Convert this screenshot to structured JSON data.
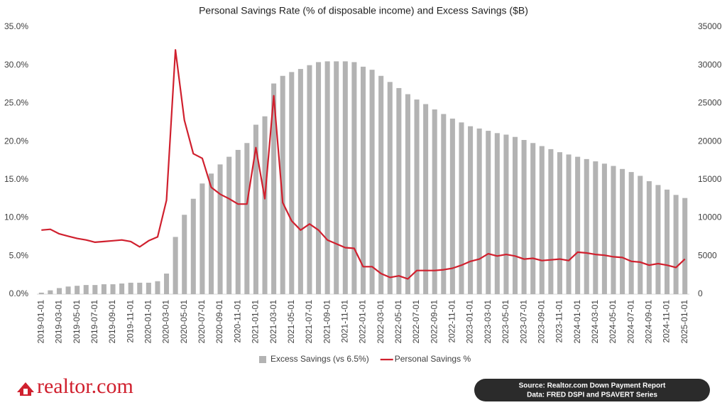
{
  "chart_data": {
    "type": "bar-line",
    "title": "Personal Savings Rate (% of disposable income) and Excess Savings ($B)",
    "categories": [
      "2019-01-01",
      null,
      "2019-03-01",
      null,
      "2019-05-01",
      null,
      "2019-07-01",
      null,
      "2019-09-01",
      null,
      "2019-11-01",
      null,
      "2020-01-01",
      null,
      "2020-03-01",
      null,
      "2020-05-01",
      null,
      "2020-07-01",
      null,
      "2020-09-01",
      null,
      "2020-11-01",
      null,
      "2021-01-01",
      null,
      "2021-03-01",
      null,
      "2021-05-01",
      null,
      "2021-07-01",
      null,
      "2021-09-01",
      null,
      "2021-11-01",
      null,
      "2022-01-01",
      null,
      "2022-03-01",
      null,
      "2022-05-01",
      null,
      "2022-07-01",
      null,
      "2022-09-01",
      null,
      "2022-11-01",
      null,
      "2023-01-01",
      null,
      "2023-03-01",
      null,
      "2023-05-01",
      null,
      "2023-07-01",
      null,
      "2023-09-01",
      null,
      "2023-11-01",
      null,
      "2024-01-01",
      null,
      "2024-03-01",
      null,
      "2024-05-01",
      null,
      "2024-07-01",
      null,
      "2024-09-01",
      null,
      "2024-11-01",
      null,
      "2025-01-01"
    ],
    "series": [
      {
        "name": "Excess Savings (vs 6.5%)",
        "color": "#b3b3b3",
        "kind": "bar",
        "axis": "y2",
        "values": [
          200,
          500,
          800,
          1000,
          1100,
          1200,
          1200,
          1300,
          1300,
          1400,
          1500,
          1500,
          1500,
          1700,
          2700,
          7500,
          10400,
          12500,
          14500,
          15800,
          17000,
          18000,
          18900,
          19800,
          22200,
          23300,
          27600,
          28600,
          29100,
          29500,
          30000,
          30400,
          30500,
          30500,
          30500,
          30400,
          29800,
          29400,
          28600,
          27800,
          27000,
          26200,
          25500,
          24900,
          24200,
          23600,
          23000,
          22500,
          22000,
          21700,
          21400,
          21100,
          20900,
          20600,
          20200,
          19800,
          19400,
          19000,
          18600,
          18300,
          18000,
          17700,
          17400,
          17100,
          16800,
          16400,
          16000,
          15500,
          14800,
          14300,
          13700,
          13000,
          12600
        ]
      },
      {
        "name": "Personal Savings %",
        "color": "#d0202e",
        "kind": "line",
        "values": [
          8.4,
          8.5,
          7.9,
          7.6,
          7.3,
          7.1,
          6.8,
          6.9,
          7.0,
          7.1,
          6.9,
          6.2,
          7.0,
          7.5,
          12.3,
          32.0,
          22.8,
          18.4,
          17.8,
          14.0,
          13.1,
          12.5,
          11.8,
          11.8,
          19.2,
          12.5,
          26.0,
          12.0,
          9.6,
          8.4,
          9.2,
          8.4,
          7.1,
          6.6,
          6.1,
          6.0,
          3.6,
          3.6,
          2.7,
          2.2,
          2.4,
          2.0,
          3.1,
          3.1,
          3.1,
          3.2,
          3.4,
          3.8,
          4.3,
          4.6,
          5.3,
          5.0,
          5.2,
          5.0,
          4.6,
          4.7,
          4.4,
          4.5,
          4.6,
          4.4,
          5.5,
          5.4,
          5.2,
          5.1,
          4.9,
          4.8,
          4.3,
          4.2,
          3.8,
          4.0,
          3.8,
          3.5,
          4.6
        ]
      }
    ],
    "ylim": [
      0,
      35
    ],
    "yticks": [
      {
        "value": 0,
        "label": "0.0%"
      },
      {
        "value": 5,
        "label": "5.0%"
      },
      {
        "value": 10,
        "label": "10.0%"
      },
      {
        "value": 15,
        "label": "15.0%"
      },
      {
        "value": 20,
        "label": "20.0%"
      },
      {
        "value": 25,
        "label": "25.0%"
      },
      {
        "value": 30,
        "label": "30.0%"
      },
      {
        "value": 35,
        "label": "35.0%"
      }
    ],
    "y2lim": [
      0,
      35000
    ],
    "y2ticks": [
      0,
      5000,
      10000,
      15000,
      20000,
      25000,
      30000,
      35000
    ],
    "legend": "bottom",
    "logo": "realtor.com",
    "source": [
      "Source: Realtor.com Down Payment Report",
      "Data: FRED DSPI and PSAVERT Series"
    ]
  }
}
